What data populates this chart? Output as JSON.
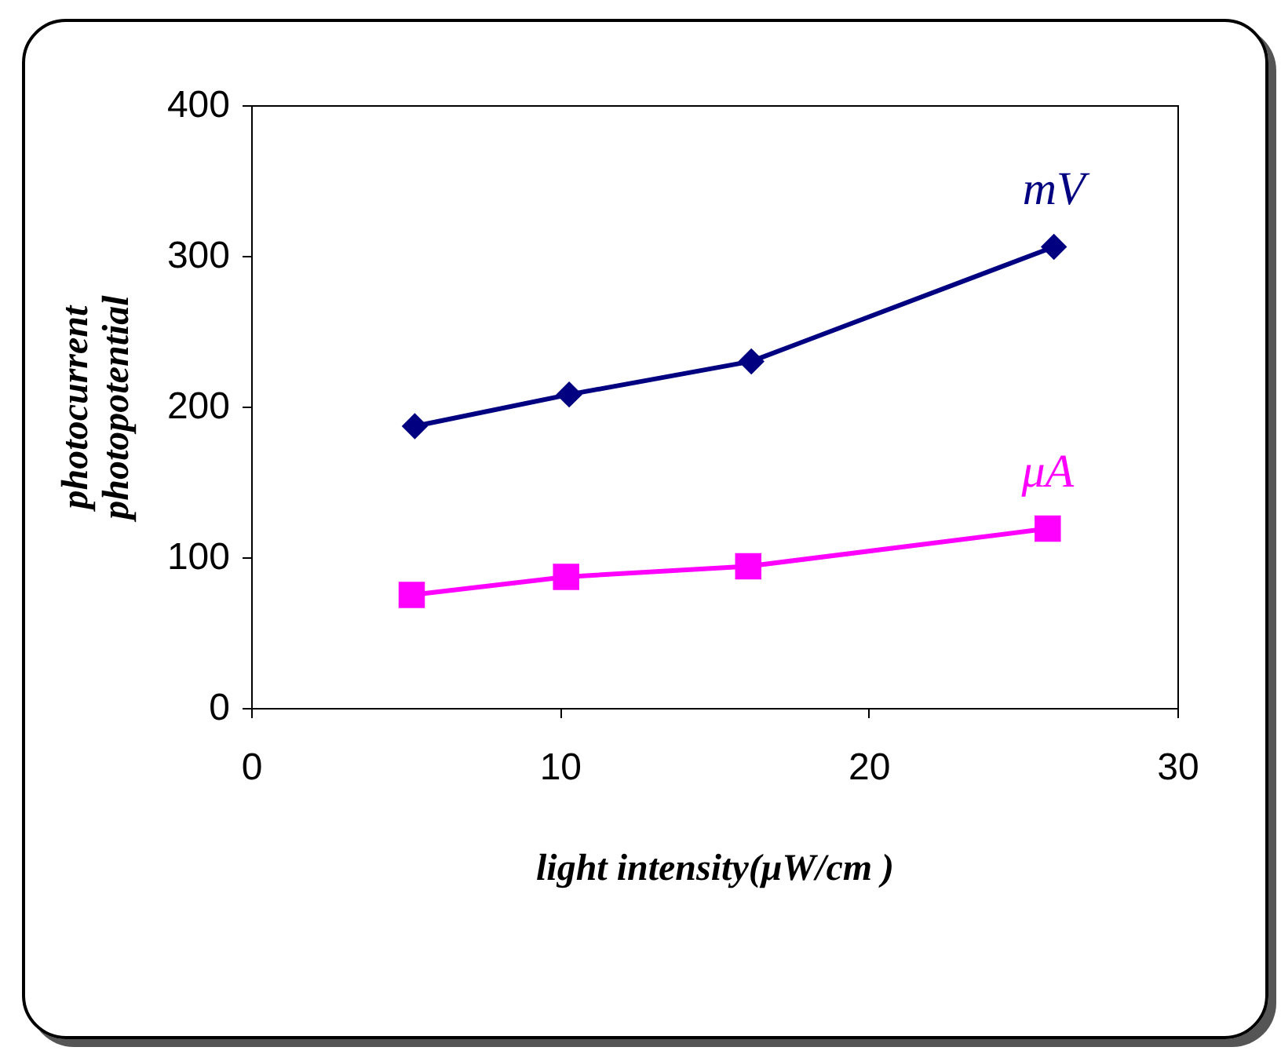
{
  "chart_data": {
    "type": "line",
    "xlabel": "light intensity(μW/cm )",
    "ylabel": [
      "photocurrent",
      "photopotential"
    ],
    "xlim": [
      0,
      30
    ],
    "xticks": [
      0,
      10,
      20,
      30
    ],
    "ylim": [
      0,
      400
    ],
    "yticks": [
      0,
      100,
      200,
      300,
      400
    ],
    "series": [
      {
        "name": "mV",
        "color": "#000080",
        "marker": "diamond",
        "x": [
          5.3,
          10.3,
          16.2,
          26
        ],
        "values": [
          187,
          208,
          230,
          306
        ]
      },
      {
        "name": "μA",
        "color": "#ff00ff",
        "marker": "square",
        "x": [
          5.2,
          10.2,
          16.1,
          25.8
        ],
        "values": [
          75,
          87,
          94,
          119
        ]
      }
    ]
  }
}
